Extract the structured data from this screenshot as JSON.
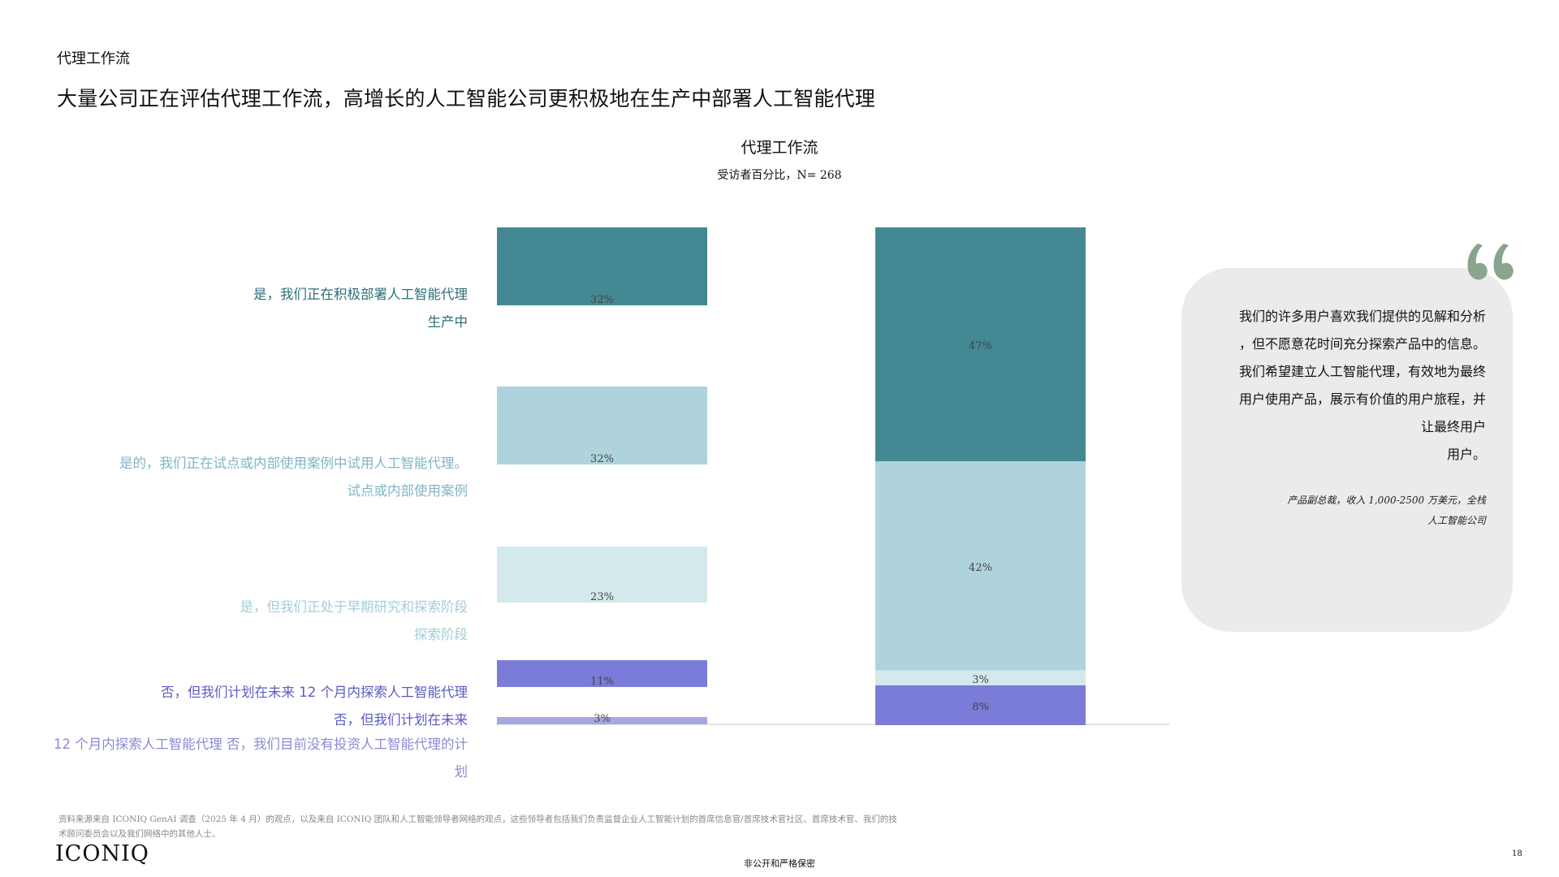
{
  "page": {
    "section_label": "代理工作流",
    "headline": "大量公司正在评估代理工作流，高增长的人工智能公司更积极地在生产中部署人工智能代理",
    "page_number": "18",
    "confidential": "非公开和严格保密",
    "logo": "ICONIQ"
  },
  "chart_data": {
    "type": "bar",
    "title": "代理工作流",
    "subtitle": "受访者百分比，N= 268",
    "categories": [
      "是，我们正在积极部署人工智能代理 生产中",
      "是的，我们正在试点或内部使用案例中试用人工智能代理。 试点或内部使用案例",
      "是，但我们正处于早期研究和探索阶段 探索阶段",
      "否，但我们计划在未来 12 个月内探索人工智能代理 否，但我们计划在未来",
      "12 个月内探索人工智能代理 否，我们目前没有投资人工智能代理的计 划"
    ],
    "category_lines": [
      [
        "是，我们正在积极部署人工智能代理",
        "生产中"
      ],
      [
        "是的，我们正在试点或内部使用案例中试用人工智能代理。",
        "试点或内部使用案例"
      ],
      [
        "是，但我们正处于早期研究和探索阶段",
        "探索阶段"
      ],
      [
        "否，但我们计划在未来 12 个月内探索人工智能代理",
        "否，但我们计划在未来"
      ],
      [
        "12 个月内探索人工智能代理 否，我们目前没有投资人工智能代理的计",
        "划"
      ]
    ],
    "colors": [
      "#438893",
      "#aed3dc",
      "#d4e9ec",
      "#7b7bd9",
      "#a7a7e3"
    ],
    "label_colors": [
      "#2e6f7a",
      "#7fb5c6",
      "#a5cdd6",
      "#5b5bc4",
      "#8a8ad8"
    ],
    "series": [
      {
        "values": [
          32,
          32,
          23,
          11,
          3
        ],
        "labels": [
          "32%",
          "32%",
          "23%",
          "11%",
          "3%"
        ]
      },
      {
        "values": [
          47,
          42,
          3,
          8,
          0
        ],
        "labels": [
          "47%",
          "42%",
          "3%",
          "8%",
          ""
        ]
      }
    ],
    "ylim": [
      0,
      100
    ],
    "grid": false,
    "legend": "none"
  },
  "quote": {
    "lines": [
      "我们的许多用户喜欢我们提供的见解和分析",
      "，但不愿意花时间充分探索产品中的信息。",
      "我们希望建立人工智能代理，有效地为最终",
      "用户使用产品，展示有价值的用户旅程，并",
      "让最终用户",
      "用户。"
    ],
    "attribution": [
      "产品副总裁，收入 1,000-2500 万美元，全栈",
      "人工智能公司"
    ],
    "mark_color": "#8aa58f"
  },
  "footnote": [
    "资料来源来自 ICONIQ GenAI 调查（2025 年 4 月）的观点，以及来自 ICONIQ 团队和人工智能领导者网络的观点，这些领导者包括我们负责监督企业人工智能计划的首席信息官/首席技术官社区、首席技术官、我们的技",
    "术顾问委员会以及我们网络中的其他人士。"
  ]
}
